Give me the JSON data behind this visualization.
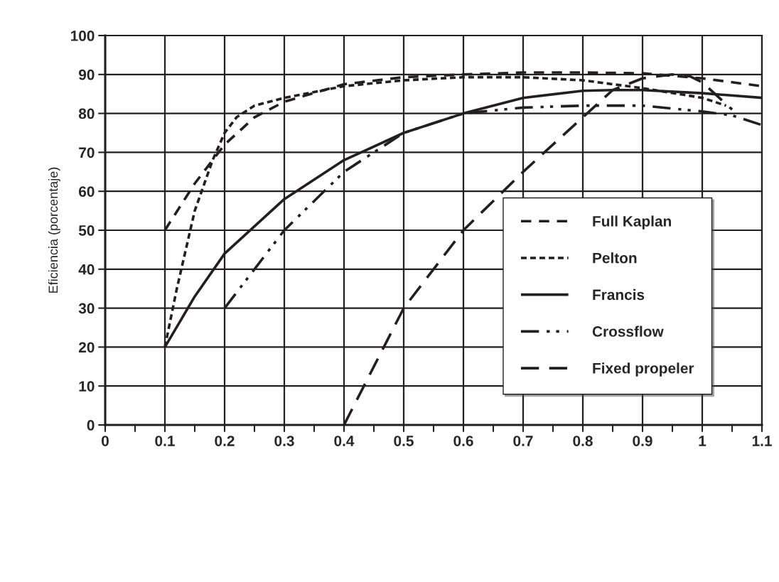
{
  "chart_data": {
    "type": "line",
    "ylabel": "Eficiencia (porcentaje)",
    "xlim": [
      0,
      1.1
    ],
    "ylim": [
      0,
      100
    ],
    "xticks": [
      0,
      {
        "value": 0.05,
        "label": null
      },
      0.1,
      {
        "value": 0.15,
        "label": null
      },
      0.2,
      {
        "value": 0.25,
        "label": null
      },
      0.3,
      {
        "value": 0.35,
        "label": null
      },
      0.4,
      {
        "value": 0.45,
        "label": null
      },
      0.5,
      {
        "value": 0.55,
        "label": null
      },
      0.6,
      {
        "value": 0.65,
        "label": null
      },
      0.7,
      {
        "value": 0.75,
        "label": null
      },
      0.8,
      {
        "value": 0.85,
        "label": null
      },
      0.9,
      {
        "value": 0.95,
        "label": null
      },
      1,
      {
        "value": 1.05,
        "label": null
      },
      1.1
    ],
    "yticks": [
      0,
      10,
      20,
      30,
      40,
      50,
      60,
      70,
      80,
      90,
      100
    ],
    "grid": true,
    "legend": "bottom right",
    "marker": "none",
    "series": [
      {
        "name": "Full Kaplan",
        "color": "#231f20",
        "line_style": "dashed",
        "x": [
          0.1,
          0.15,
          0.2,
          0.25,
          0.3,
          0.4,
          0.5,
          0.6,
          0.7,
          0.8,
          0.9,
          1.0,
          1.1
        ],
        "values": [
          50,
          62,
          72,
          79,
          83,
          87.5,
          89.3,
          90,
          90.5,
          90.5,
          90.3,
          89,
          87
        ]
      },
      {
        "name": "Pelton",
        "color": "#231f20",
        "line_style": "dotted",
        "x": [
          0.1,
          0.12,
          0.15,
          0.18,
          0.2,
          0.22,
          0.25,
          0.3,
          0.4,
          0.5,
          0.6,
          0.7,
          0.8,
          0.9,
          1.0,
          1.04
        ],
        "values": [
          20,
          35,
          55,
          68,
          75,
          79,
          82,
          84,
          87,
          88.5,
          89.3,
          89.3,
          88.5,
          86.5,
          84,
          82
        ]
      },
      {
        "name": "Francis",
        "color": "#231f20",
        "line_style": "solid",
        "x": [
          0.1,
          0.15,
          0.2,
          0.3,
          0.4,
          0.5,
          0.6,
          0.7,
          0.8,
          0.85,
          0.9,
          1.0,
          1.1
        ],
        "values": [
          20,
          33,
          44,
          58,
          68,
          75,
          80,
          84,
          85.8,
          86,
          86,
          85.2,
          84
        ]
      },
      {
        "name": "Crossflow",
        "color": "#231f20",
        "line_style": "dashdotdot",
        "x": [
          0.2,
          0.3,
          0.4,
          0.5,
          0.6,
          0.7,
          0.8,
          0.9,
          1.0,
          1.05,
          1.1
        ],
        "values": [
          30,
          50,
          65,
          75,
          80,
          81.5,
          82,
          82,
          80.5,
          79.5,
          77
        ]
      },
      {
        "name": "Fixed propeler",
        "color": "#231f20",
        "line_style": "longdash",
        "x": [
          0.4,
          0.45,
          0.5,
          0.55,
          0.6,
          0.7,
          0.8,
          0.85,
          0.9,
          0.95,
          0.98,
          1.0,
          1.05
        ],
        "values": [
          0,
          15,
          30,
          40,
          50,
          65,
          79,
          86,
          89,
          90,
          89.5,
          88,
          81
        ]
      }
    ]
  }
}
